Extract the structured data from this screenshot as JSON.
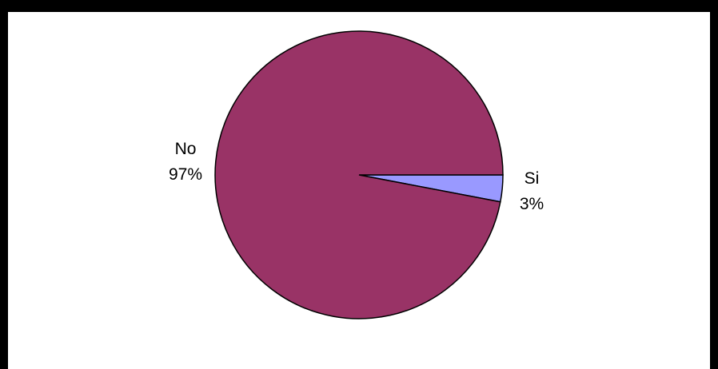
{
  "chart_data": {
    "type": "pie",
    "slices": [
      {
        "label": "No",
        "percent_label": "97%",
        "value": 97,
        "color": "#993366"
      },
      {
        "label": "Si",
        "percent_label": "3%",
        "value": 3,
        "color": "#9999ff"
      }
    ],
    "start_angle_deg": 0,
    "direction": "clockwise",
    "legend": "none"
  },
  "colors": {
    "border": "#000000",
    "background": "#ffffff",
    "outline": "#000000"
  }
}
